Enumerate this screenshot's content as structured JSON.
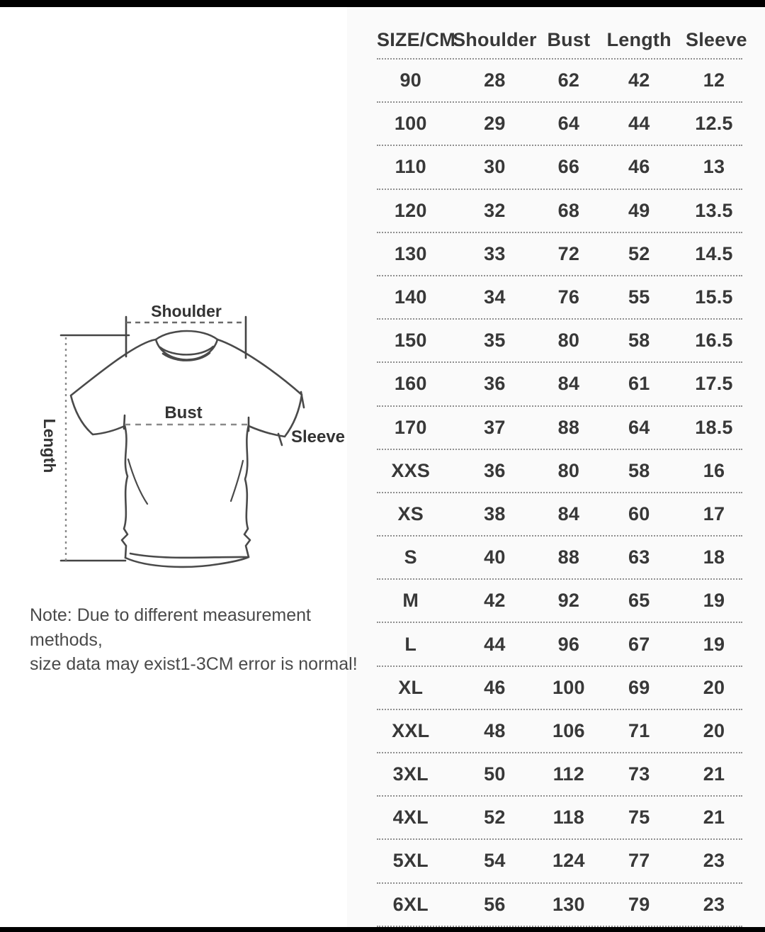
{
  "chart_data": {
    "type": "table",
    "unit": "CM",
    "columns": [
      "SIZE/CM",
      "Shoulder",
      "Bust",
      "Length",
      "Sleeve"
    ],
    "rows": [
      [
        "90",
        "28",
        "62",
        "42",
        "12"
      ],
      [
        "100",
        "29",
        "64",
        "44",
        "12.5"
      ],
      [
        "110",
        "30",
        "66",
        "46",
        "13"
      ],
      [
        "120",
        "32",
        "68",
        "49",
        "13.5"
      ],
      [
        "130",
        "33",
        "72",
        "52",
        "14.5"
      ],
      [
        "140",
        "34",
        "76",
        "55",
        "15.5"
      ],
      [
        "150",
        "35",
        "80",
        "58",
        "16.5"
      ],
      [
        "160",
        "36",
        "84",
        "61",
        "17.5"
      ],
      [
        "170",
        "37",
        "88",
        "64",
        "18.5"
      ],
      [
        "XXS",
        "36",
        "80",
        "58",
        "16"
      ],
      [
        "XS",
        "38",
        "84",
        "60",
        "17"
      ],
      [
        "S",
        "40",
        "88",
        "63",
        "18"
      ],
      [
        "M",
        "42",
        "92",
        "65",
        "19"
      ],
      [
        "L",
        "44",
        "96",
        "67",
        "19"
      ],
      [
        "XL",
        "46",
        "100",
        "69",
        "20"
      ],
      [
        "XXL",
        "48",
        "106",
        "71",
        "20"
      ],
      [
        "3XL",
        "50",
        "112",
        "73",
        "21"
      ],
      [
        "4XL",
        "52",
        "118",
        "75",
        "21"
      ],
      [
        "5XL",
        "54",
        "124",
        "77",
        "23"
      ],
      [
        "6XL",
        "56",
        "130",
        "79",
        "23"
      ]
    ]
  },
  "diagram": {
    "shoulder_label": "Shoulder",
    "bust_label": "Bust",
    "length_label": "Length",
    "sleeve_label": "Sleeve"
  },
  "note": {
    "line1": "Note: Due to different measurement methods,",
    "line2": "size data may exist1-3CM error is normal!"
  },
  "colors": {
    "text": "#383838",
    "separator": "#8f8f8f",
    "frame_bar": "#000000",
    "bg_left": "#ffffff",
    "bg_right": "#fafafa"
  }
}
